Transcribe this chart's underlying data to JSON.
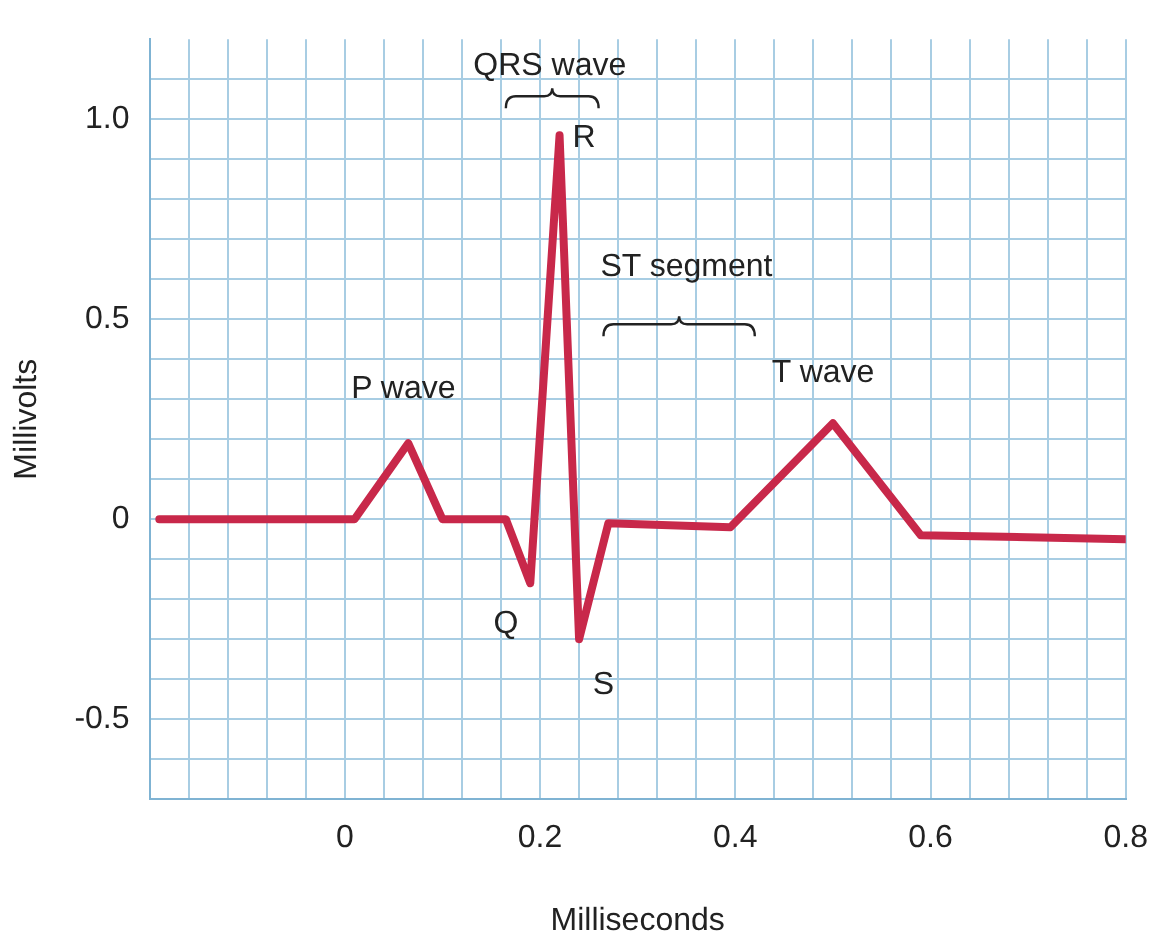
{
  "chart_data": {
    "type": "line",
    "xlabel": "Milliseconds",
    "ylabel": "Millivolts",
    "xlim": [
      -0.2,
      0.8
    ],
    "ylim": [
      -0.7,
      1.2
    ],
    "xticks": [
      {
        "value": -0.16,
        "label": null
      },
      {
        "value": -0.12,
        "label": null
      },
      {
        "value": -0.08,
        "label": null
      },
      {
        "value": -0.04,
        "label": null
      },
      0,
      {
        "value": 0.04,
        "label": null
      },
      {
        "value": 0.08,
        "label": null
      },
      {
        "value": 0.12,
        "label": null
      },
      {
        "value": 0.16,
        "label": null
      },
      0.2,
      {
        "value": 0.24,
        "label": null
      },
      {
        "value": 0.28,
        "label": null
      },
      {
        "value": 0.32,
        "label": null
      },
      {
        "value": 0.36,
        "label": null
      },
      0.4,
      {
        "value": 0.44,
        "label": null
      },
      {
        "value": 0.48,
        "label": null
      },
      {
        "value": 0.52,
        "label": null
      },
      {
        "value": 0.56,
        "label": null
      },
      0.6,
      {
        "value": 0.64,
        "label": null
      },
      {
        "value": 0.68,
        "label": null
      },
      {
        "value": 0.72,
        "label": null
      },
      {
        "value": 0.76,
        "label": null
      },
      0.8
    ],
    "yticks": [
      {
        "value": -0.6,
        "label": null
      },
      -0.5,
      {
        "value": -0.4,
        "label": null
      },
      {
        "value": -0.3,
        "label": null
      },
      {
        "value": -0.2,
        "label": null
      },
      {
        "value": -0.1,
        "label": null
      },
      0,
      {
        "value": 0.1,
        "label": null
      },
      {
        "value": 0.2,
        "label": null
      },
      {
        "value": 0.3,
        "label": null
      },
      {
        "value": 0.4,
        "label": null
      },
      0.5,
      {
        "value": 0.6,
        "label": null
      },
      {
        "value": 0.7,
        "label": null
      },
      {
        "value": 0.8,
        "label": null
      },
      {
        "value": 0.9,
        "label": null
      },
      {
        "value": 1,
        "label": "1.0"
      },
      {
        "value": 1.1,
        "label": null
      }
    ],
    "grid": true,
    "marker": "none",
    "line_style": "solid",
    "x": [
      -0.19,
      0.01,
      0.065,
      0.1,
      0.165,
      0.19,
      0.22,
      0.24,
      0.27,
      0.395,
      0.5,
      0.59,
      0.8
    ],
    "series": [
      {
        "color": "#c8284a",
        "values": [
          0,
          0,
          0.19,
          0,
          0,
          -0.16,
          0.96,
          -0.3,
          -0.01,
          -0.02,
          0.24,
          -0.04,
          -0.05
        ]
      }
    ],
    "annotations": [
      "QRS wave",
      "R",
      "Q",
      "S",
      "ST segment",
      "P wave",
      "T wave"
    ]
  }
}
